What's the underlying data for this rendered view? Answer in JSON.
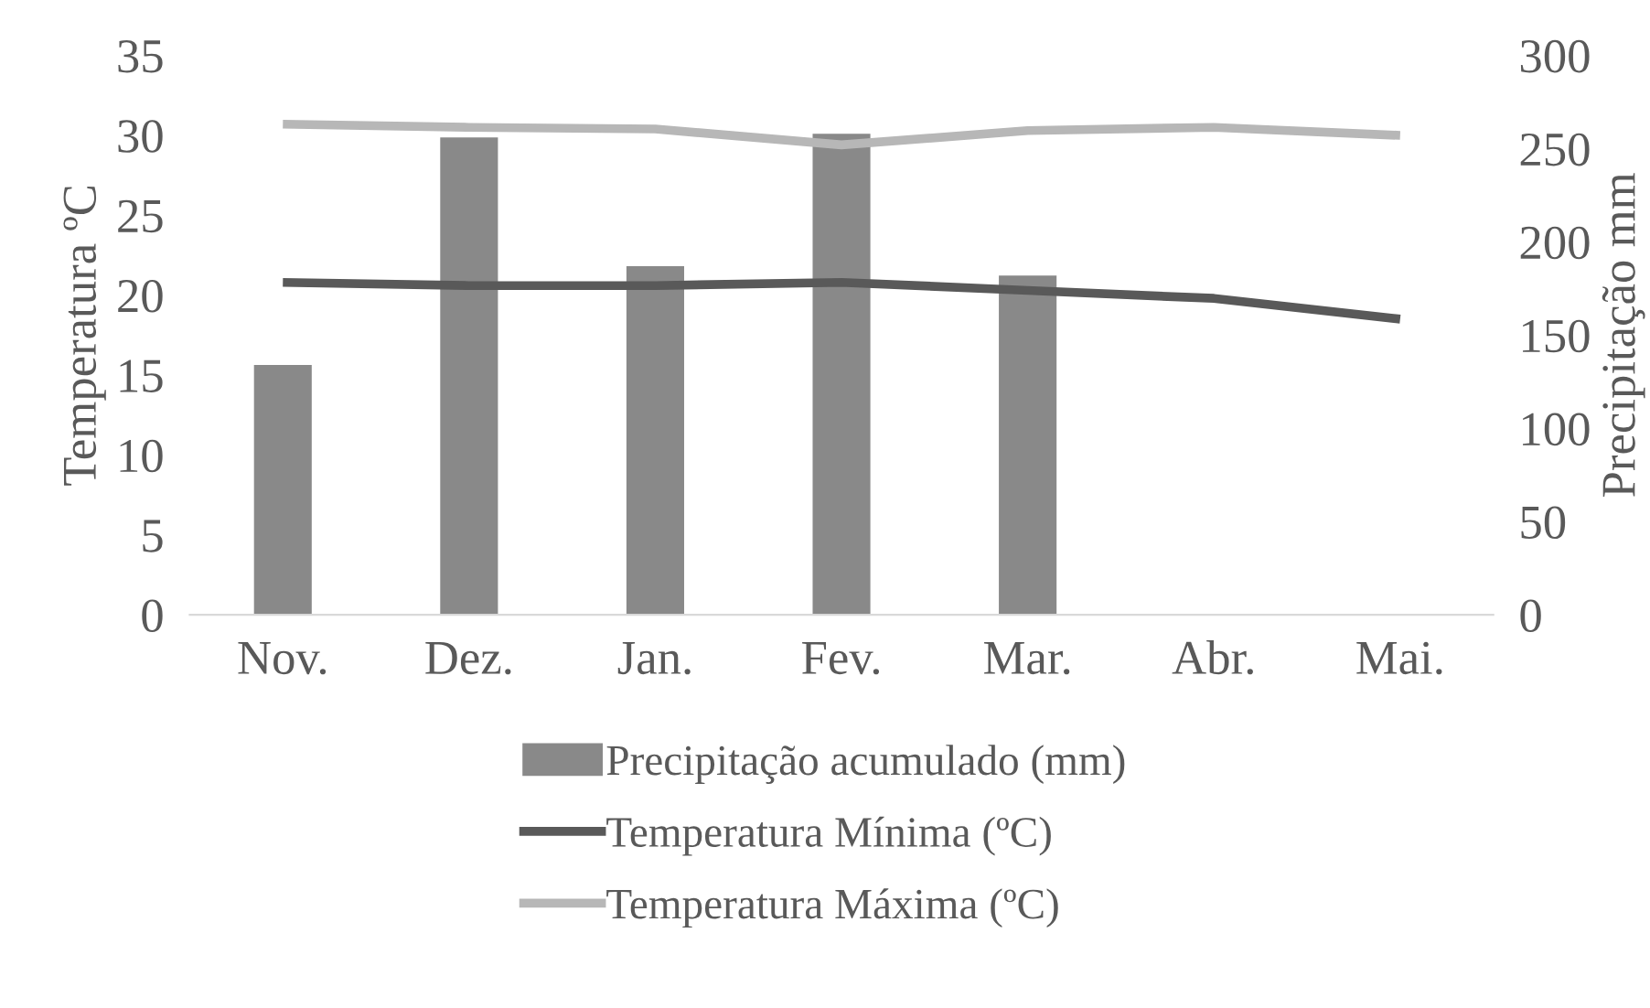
{
  "chart_data": {
    "type": "bar",
    "categories": [
      "Nov.",
      "Dez.",
      "Jan.",
      "Fev.",
      "Mar.",
      "Abr.",
      "Mai."
    ],
    "ylabel": "Temperatura ºC",
    "y2label": "Precipitação mm",
    "ylim": [
      0,
      35
    ],
    "yticks": [
      0,
      5,
      10,
      15,
      20,
      25,
      30,
      35
    ],
    "y2lim": [
      0,
      300
    ],
    "y2ticks": [
      0,
      50,
      100,
      150,
      200,
      250,
      300
    ],
    "series": [
      {
        "name": "Precipitação acumulado (mm)",
        "axis": "y2",
        "color": "#898989",
        "values": [
          134,
          256,
          187,
          258,
          182,
          null,
          null
        ]
      },
      {
        "name": "Temperatura Mínima (ºC)",
        "type": "line",
        "color": "#595959",
        "values": [
          20.8,
          20.6,
          20.6,
          20.8,
          20.3,
          19.8,
          18.5
        ]
      },
      {
        "name": "Temperatura Máxima (ºC)",
        "type": "line",
        "color": "#b7b7b7",
        "values": [
          30.7,
          30.5,
          30.4,
          29.4,
          30.3,
          30.5,
          30.0
        ]
      }
    ],
    "legend": "bottom",
    "grid": false
  }
}
